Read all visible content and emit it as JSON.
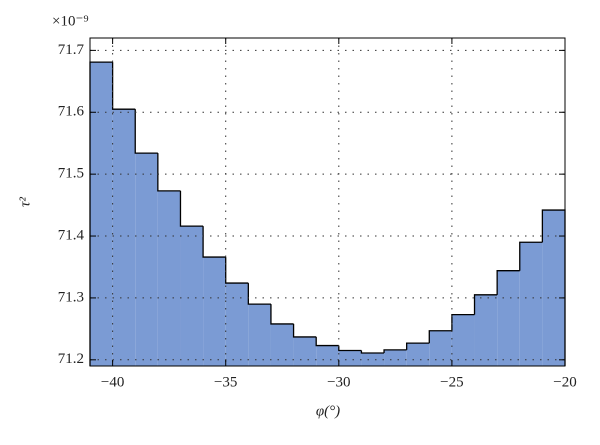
{
  "chart_data": {
    "type": "histogram",
    "y_multiplier": "×10⁻⁹",
    "xlabel": "φ(°)",
    "ylabel": "τ²",
    "bins": [
      -41,
      -40,
      -39,
      -38,
      -37,
      -36,
      -35,
      -34,
      -33,
      -32,
      -31,
      -30,
      -29,
      -28,
      -27,
      -26,
      -25,
      -24,
      -23,
      -22,
      -21,
      -20
    ],
    "values": [
      71.681,
      71.605,
      71.534,
      71.473,
      71.416,
      71.366,
      71.324,
      71.29,
      71.258,
      71.237,
      71.223,
      71.215,
      71.211,
      71.216,
      71.227,
      71.247,
      71.273,
      71.305,
      71.344,
      71.39,
      71.442
    ],
    "color": "#7b9bd4",
    "xlim": [
      -41,
      -20
    ],
    "ylim": [
      71.19,
      71.72
    ],
    "xticks": [
      {
        "value": -40,
        "label": "−40"
      },
      {
        "value": -35,
        "label": "−35"
      },
      {
        "value": -30,
        "label": "−30"
      },
      {
        "value": -25,
        "label": "−25"
      },
      {
        "value": -20,
        "label": "−20"
      }
    ],
    "yticks": [
      71.2,
      71.3,
      71.4,
      71.5,
      71.6,
      71.7
    ],
    "grid": true
  }
}
